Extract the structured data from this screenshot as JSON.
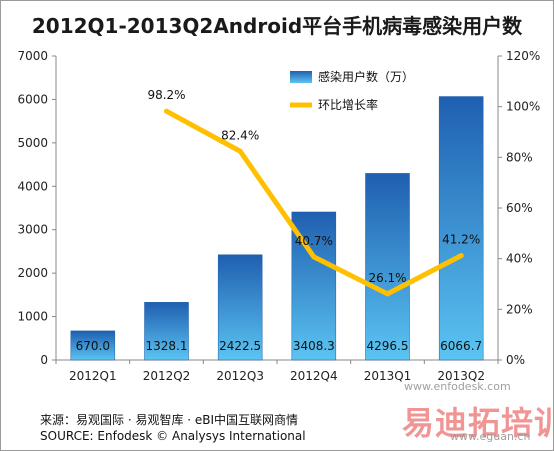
{
  "title": "2012Q1-2013Q2Android平台手机病毒感染用户数",
  "source_cn": "来源：易观国际 · 易观智库 · eBI中国互联网商情",
  "source_en": "SOURCE: Enfodesk © Analysys International",
  "watermark": {
    "text": "易迪拓培训",
    "url_top": "www.enfodesk.com",
    "url_bottom": "www.eguan.cn"
  },
  "colors": {
    "bar_top": "#1f5fb0",
    "bar_bottom": "#5bc4f2",
    "line": "#ffc000"
  },
  "chart_data": {
    "type": "bar",
    "categories": [
      "2012Q1",
      "2012Q2",
      "2012Q3",
      "2012Q4",
      "2013Q1",
      "2013Q2"
    ],
    "series": [
      {
        "name": "感染用户数（万）",
        "type": "bar",
        "axis": "left",
        "values": [
          670.0,
          1328.1,
          2422.5,
          3408.3,
          4296.5,
          6066.7
        ],
        "labels": [
          "670.0",
          "1328.1",
          "2422.5",
          "3408.3",
          "4296.5",
          "6066.7"
        ]
      },
      {
        "name": "环比增长率",
        "type": "line",
        "axis": "right",
        "values": [
          null,
          98.2,
          82.4,
          40.7,
          26.1,
          41.2
        ],
        "labels": [
          "",
          "98.2%",
          "82.4%",
          "40.7%",
          "26.1%",
          "41.2%"
        ]
      }
    ],
    "y_left": {
      "min": 0,
      "max": 7000,
      "ticks": [
        "0",
        "1000",
        "2000",
        "3000",
        "4000",
        "5000",
        "6000",
        "7000"
      ]
    },
    "y_right": {
      "min": 0,
      "max": 120,
      "ticks": [
        "0%",
        "20%",
        "40%",
        "60%",
        "80%",
        "100%",
        "120%"
      ]
    },
    "grid": false,
    "legend_position": "top-center"
  }
}
